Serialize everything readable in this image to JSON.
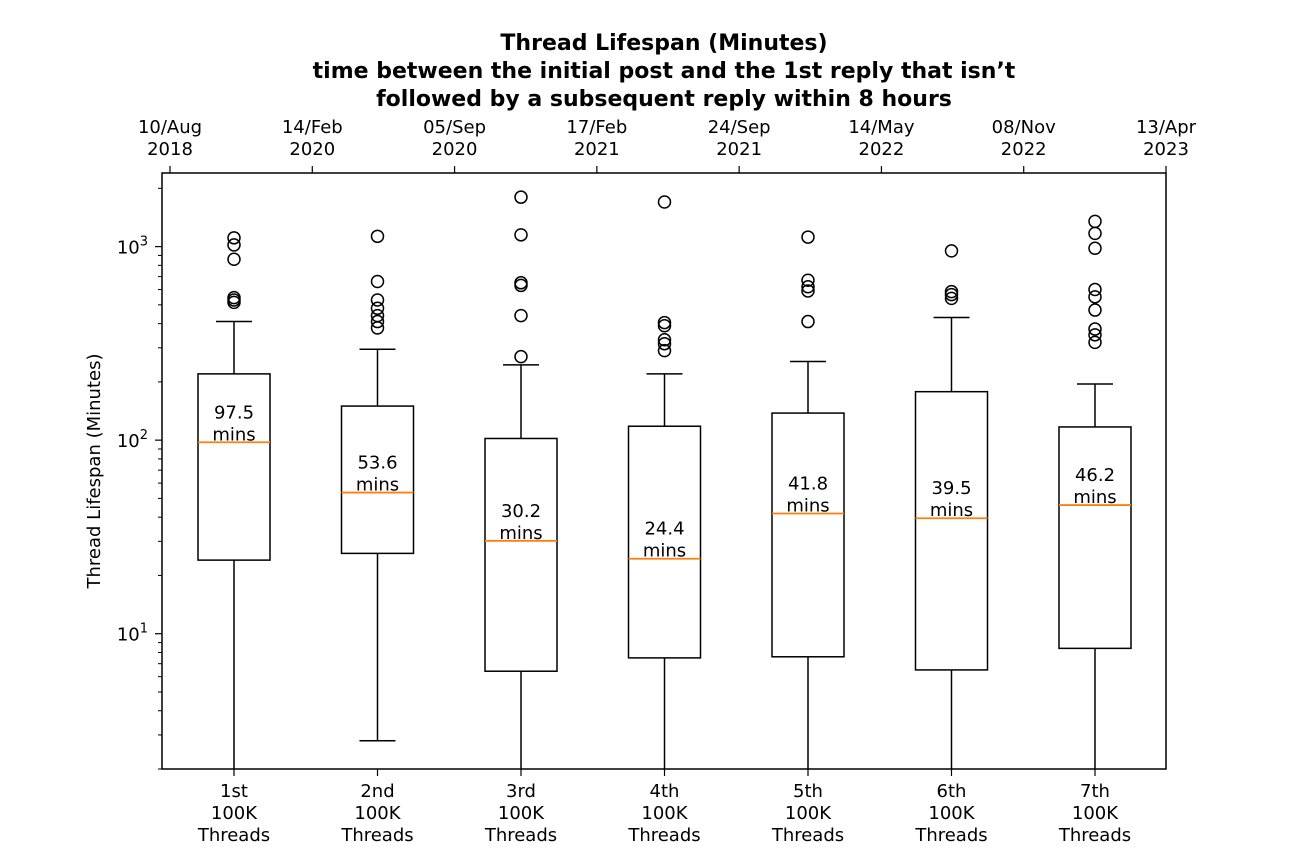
{
  "chart_data": {
    "type": "boxplot",
    "title": [
      "Thread Lifespan (Minutes)",
      "time between the initial post and the 1st reply that isn’t",
      "followed by a subsequent reply within 8 hours"
    ],
    "ylabel": "Thread Lifespan (Minutes)",
    "yscale": "log",
    "ylim": [
      2.0,
      2400
    ],
    "y_ticks": [
      {
        "value": 10,
        "base": "10",
        "exp": "1"
      },
      {
        "value": 100,
        "base": "10",
        "exp": "2"
      },
      {
        "value": 1000,
        "base": "10",
        "exp": "3"
      }
    ],
    "categories": [
      [
        "1st",
        "100K",
        "Threads"
      ],
      [
        "2nd",
        "100K",
        "Threads"
      ],
      [
        "3rd",
        "100K",
        "Threads"
      ],
      [
        "4th",
        "100K",
        "Threads"
      ],
      [
        "5th",
        "100K",
        "Threads"
      ],
      [
        "6th",
        "100K",
        "Threads"
      ],
      [
        "7th",
        "100K",
        "Threads"
      ]
    ],
    "top_axis_dates": [
      [
        "10/Aug",
        "2018"
      ],
      [
        "14/Feb",
        "2020"
      ],
      [
        "05/Sep",
        "2020"
      ],
      [
        "17/Feb",
        "2021"
      ],
      [
        "24/Sep",
        "2021"
      ],
      [
        "14/May",
        "2022"
      ],
      [
        "08/Nov",
        "2022"
      ],
      [
        "13/Apr",
        "2023"
      ]
    ],
    "boxes": [
      {
        "q1": 24,
        "median": 97.5,
        "q3": 220,
        "whisker_low": 2.0,
        "whisker_high": 410,
        "median_label": [
          "97.5",
          "mins"
        ],
        "fliers": [
          1110,
          1020,
          860,
          545,
          530,
          515
        ]
      },
      {
        "q1": 26,
        "median": 53.6,
        "q3": 150,
        "whisker_low": 2.8,
        "whisker_high": 295,
        "median_label": [
          "53.6",
          "mins"
        ],
        "fliers": [
          1130,
          660,
          530,
          480,
          440,
          410,
          380
        ]
      },
      {
        "q1": 6.4,
        "median": 30.2,
        "q3": 102,
        "whisker_low": 2.0,
        "whisker_high": 245,
        "median_label": [
          "30.2",
          "mins"
        ],
        "fliers": [
          1800,
          1150,
          650,
          630,
          440,
          270
        ]
      },
      {
        "q1": 7.5,
        "median": 24.4,
        "q3": 118,
        "whisker_low": 2.0,
        "whisker_high": 220,
        "median_label": [
          "24.4",
          "mins"
        ],
        "fliers": [
          1700,
          405,
          390,
          330,
          315,
          290
        ]
      },
      {
        "q1": 7.6,
        "median": 41.8,
        "q3": 138,
        "whisker_low": 2.0,
        "whisker_high": 255,
        "median_label": [
          "41.8",
          "mins"
        ],
        "fliers": [
          1120,
          670,
          620,
          590,
          410
        ]
      },
      {
        "q1": 6.5,
        "median": 39.5,
        "q3": 178,
        "whisker_low": 2.0,
        "whisker_high": 430,
        "median_label": [
          "39.5",
          "mins"
        ],
        "fliers": [
          950,
          585,
          565,
          540
        ]
      },
      {
        "q1": 8.4,
        "median": 46.2,
        "q3": 117,
        "whisker_low": 2.0,
        "whisker_high": 195,
        "median_label": [
          "46.2",
          "mins"
        ],
        "fliers": [
          1350,
          1170,
          980,
          600,
          550,
          470,
          375,
          350,
          320
        ]
      }
    ],
    "colors": {
      "median": "#ff7f0e",
      "box": "#000000",
      "axis": "#000000"
    },
    "grid": false
  }
}
